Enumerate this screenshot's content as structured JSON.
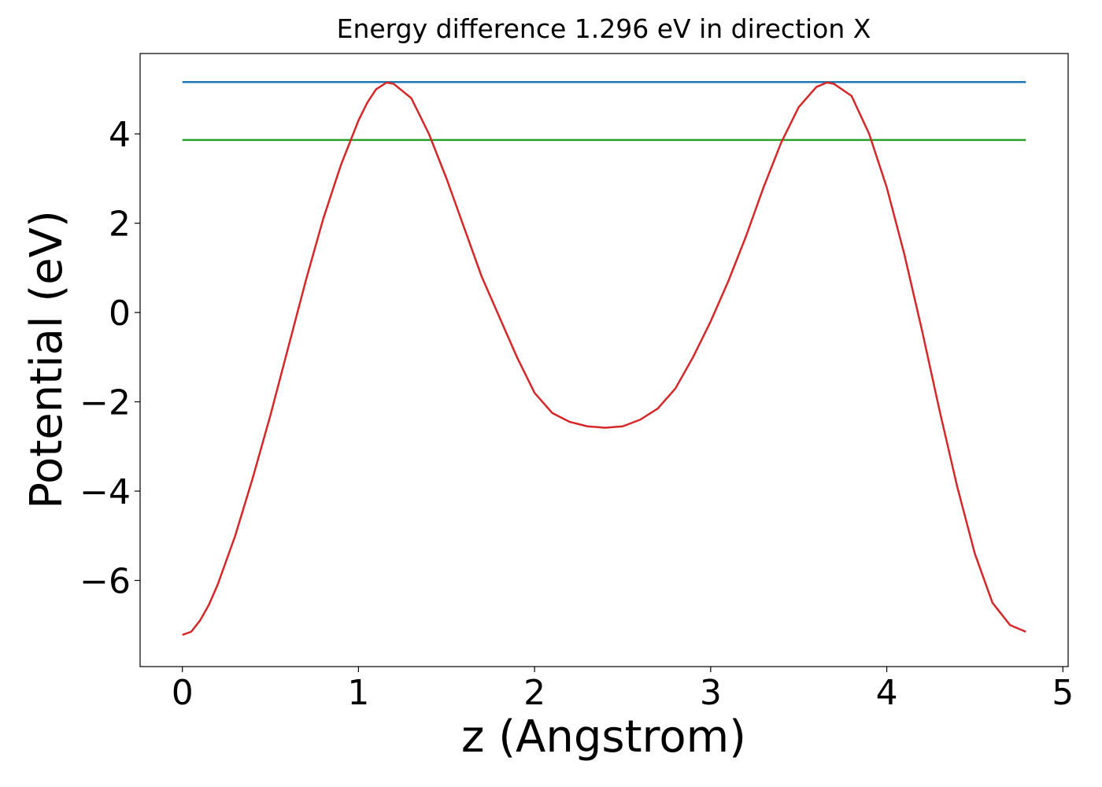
{
  "chart_data": {
    "type": "line",
    "title": "Energy difference 1.296 eV in direction X",
    "xlabel": "z (Angstrom)",
    "ylabel": "Potential (eV)",
    "xlim": [
      -0.24,
      5.03
    ],
    "ylim": [
      -7.93,
      5.8
    ],
    "xticks": [
      0,
      1,
      2,
      3,
      4,
      5
    ],
    "yticks": [
      {
        "value": -6,
        "label": "−6"
      },
      {
        "value": -4,
        "label": "−4"
      },
      {
        "value": -2,
        "label": "−2"
      },
      0,
      2,
      4
    ],
    "grid": false,
    "series": [
      {
        "color": "#1f77b4",
        "x": [
          0,
          4.79
        ],
        "values": [
          5.16,
          5.16
        ]
      },
      {
        "color": "#2ca02c",
        "x": [
          0,
          4.79
        ],
        "values": [
          3.864,
          3.864
        ]
      },
      {
        "color": "#d62728",
        "x": [
          0,
          0.05,
          0.1,
          0.15,
          0.2,
          0.3,
          0.4,
          0.5,
          0.6,
          0.7,
          0.8,
          0.9,
          1.0,
          1.05,
          1.1,
          1.16,
          1.2,
          1.3,
          1.4,
          1.5,
          1.6,
          1.7,
          1.8,
          1.9,
          2.0,
          2.1,
          2.2,
          2.3,
          2.4,
          2.5,
          2.6,
          2.7,
          2.8,
          2.9,
          3.0,
          3.1,
          3.2,
          3.3,
          3.4,
          3.5,
          3.6,
          3.66,
          3.7,
          3.8,
          3.9,
          4.0,
          4.1,
          4.2,
          4.3,
          4.4,
          4.5,
          4.6,
          4.7,
          4.79
        ],
        "values": [
          -7.22,
          -7.15,
          -6.9,
          -6.55,
          -6.1,
          -5.0,
          -3.7,
          -2.3,
          -0.8,
          0.7,
          2.1,
          3.3,
          4.3,
          4.7,
          5.0,
          5.15,
          5.12,
          4.8,
          4.0,
          3.0,
          1.9,
          0.8,
          -0.1,
          -1.0,
          -1.8,
          -2.25,
          -2.45,
          -2.55,
          -2.58,
          -2.55,
          -2.4,
          -2.15,
          -1.7,
          -1.0,
          -0.2,
          0.7,
          1.7,
          2.8,
          3.8,
          4.6,
          5.05,
          5.15,
          5.12,
          4.85,
          4.0,
          2.8,
          1.3,
          -0.4,
          -2.2,
          -3.9,
          -5.4,
          -6.5,
          -7.0,
          -7.15
        ]
      }
    ]
  }
}
